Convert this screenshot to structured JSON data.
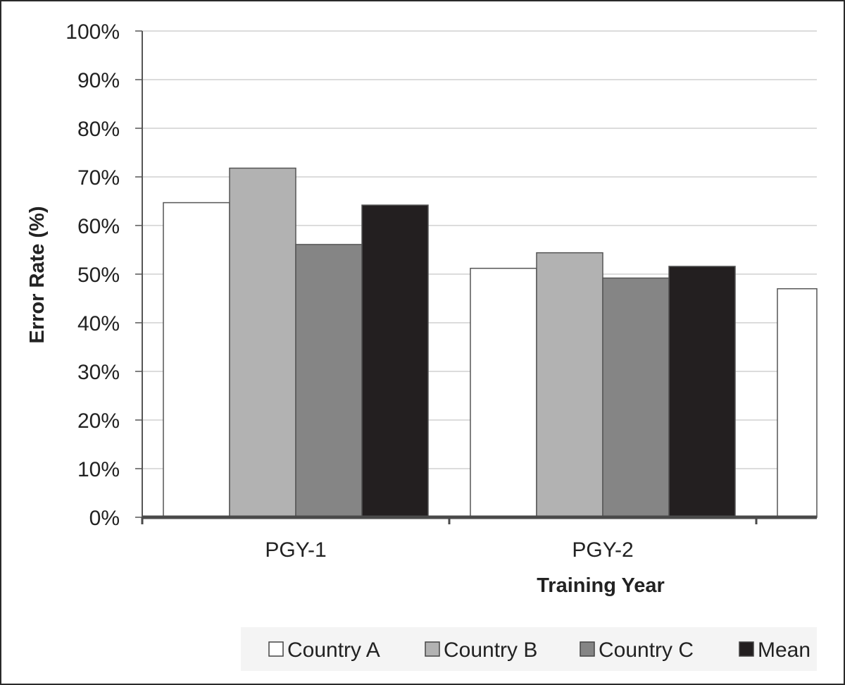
{
  "chart_data": {
    "type": "bar",
    "title": "",
    "xlabel": "Training Year",
    "ylabel": "Error Rate (%)",
    "ylim": [
      0,
      100
    ],
    "yticks": [
      "0%",
      "10%",
      "20%",
      "30%",
      "40%",
      "50%",
      "60%",
      "70%",
      "80%",
      "90%",
      "100%"
    ],
    "categories": [
      "PGY-1",
      "PGY-2",
      ""
    ],
    "series": [
      {
        "name": "Country A",
        "color": "#ffffff",
        "values": [
          64.7,
          51.2,
          47.0
        ]
      },
      {
        "name": "Country B",
        "color": "#b2b2b2",
        "values": [
          71.8,
          54.4,
          null
        ]
      },
      {
        "name": "Country C",
        "color": "#858585",
        "values": [
          56.1,
          49.2,
          null
        ]
      },
      {
        "name": "Mean",
        "color": "#231f20",
        "values": [
          64.2,
          51.6,
          null
        ]
      }
    ],
    "grid": true,
    "legend": "bottom"
  }
}
